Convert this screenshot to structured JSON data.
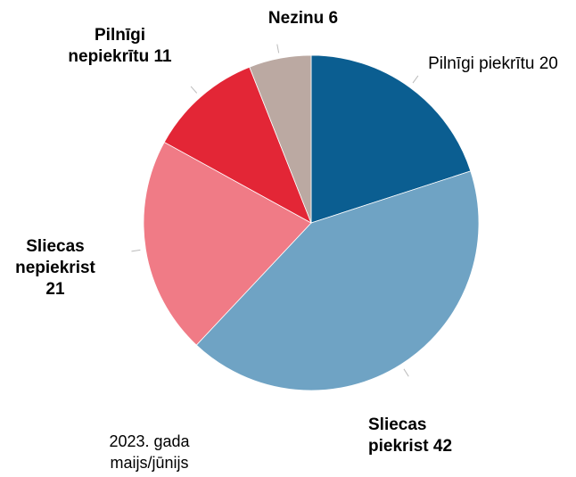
{
  "chart_data": {
    "type": "pie",
    "categories": [
      "Pilnīgi piekrītu",
      "Sliecas piekrist",
      "Sliecas nepiekrist",
      "Pilnīgi nepiekrītu",
      "Nezinu"
    ],
    "values": [
      20,
      42,
      21,
      11,
      6
    ],
    "colors": [
      "#0b5e91",
      "#6fa3c4",
      "#f07b86",
      "#e32636",
      "#bba9a2"
    ],
    "start_angle": 90,
    "direction": "clockwise",
    "annotation": "2023. gada maijs/jūnijs"
  }
}
